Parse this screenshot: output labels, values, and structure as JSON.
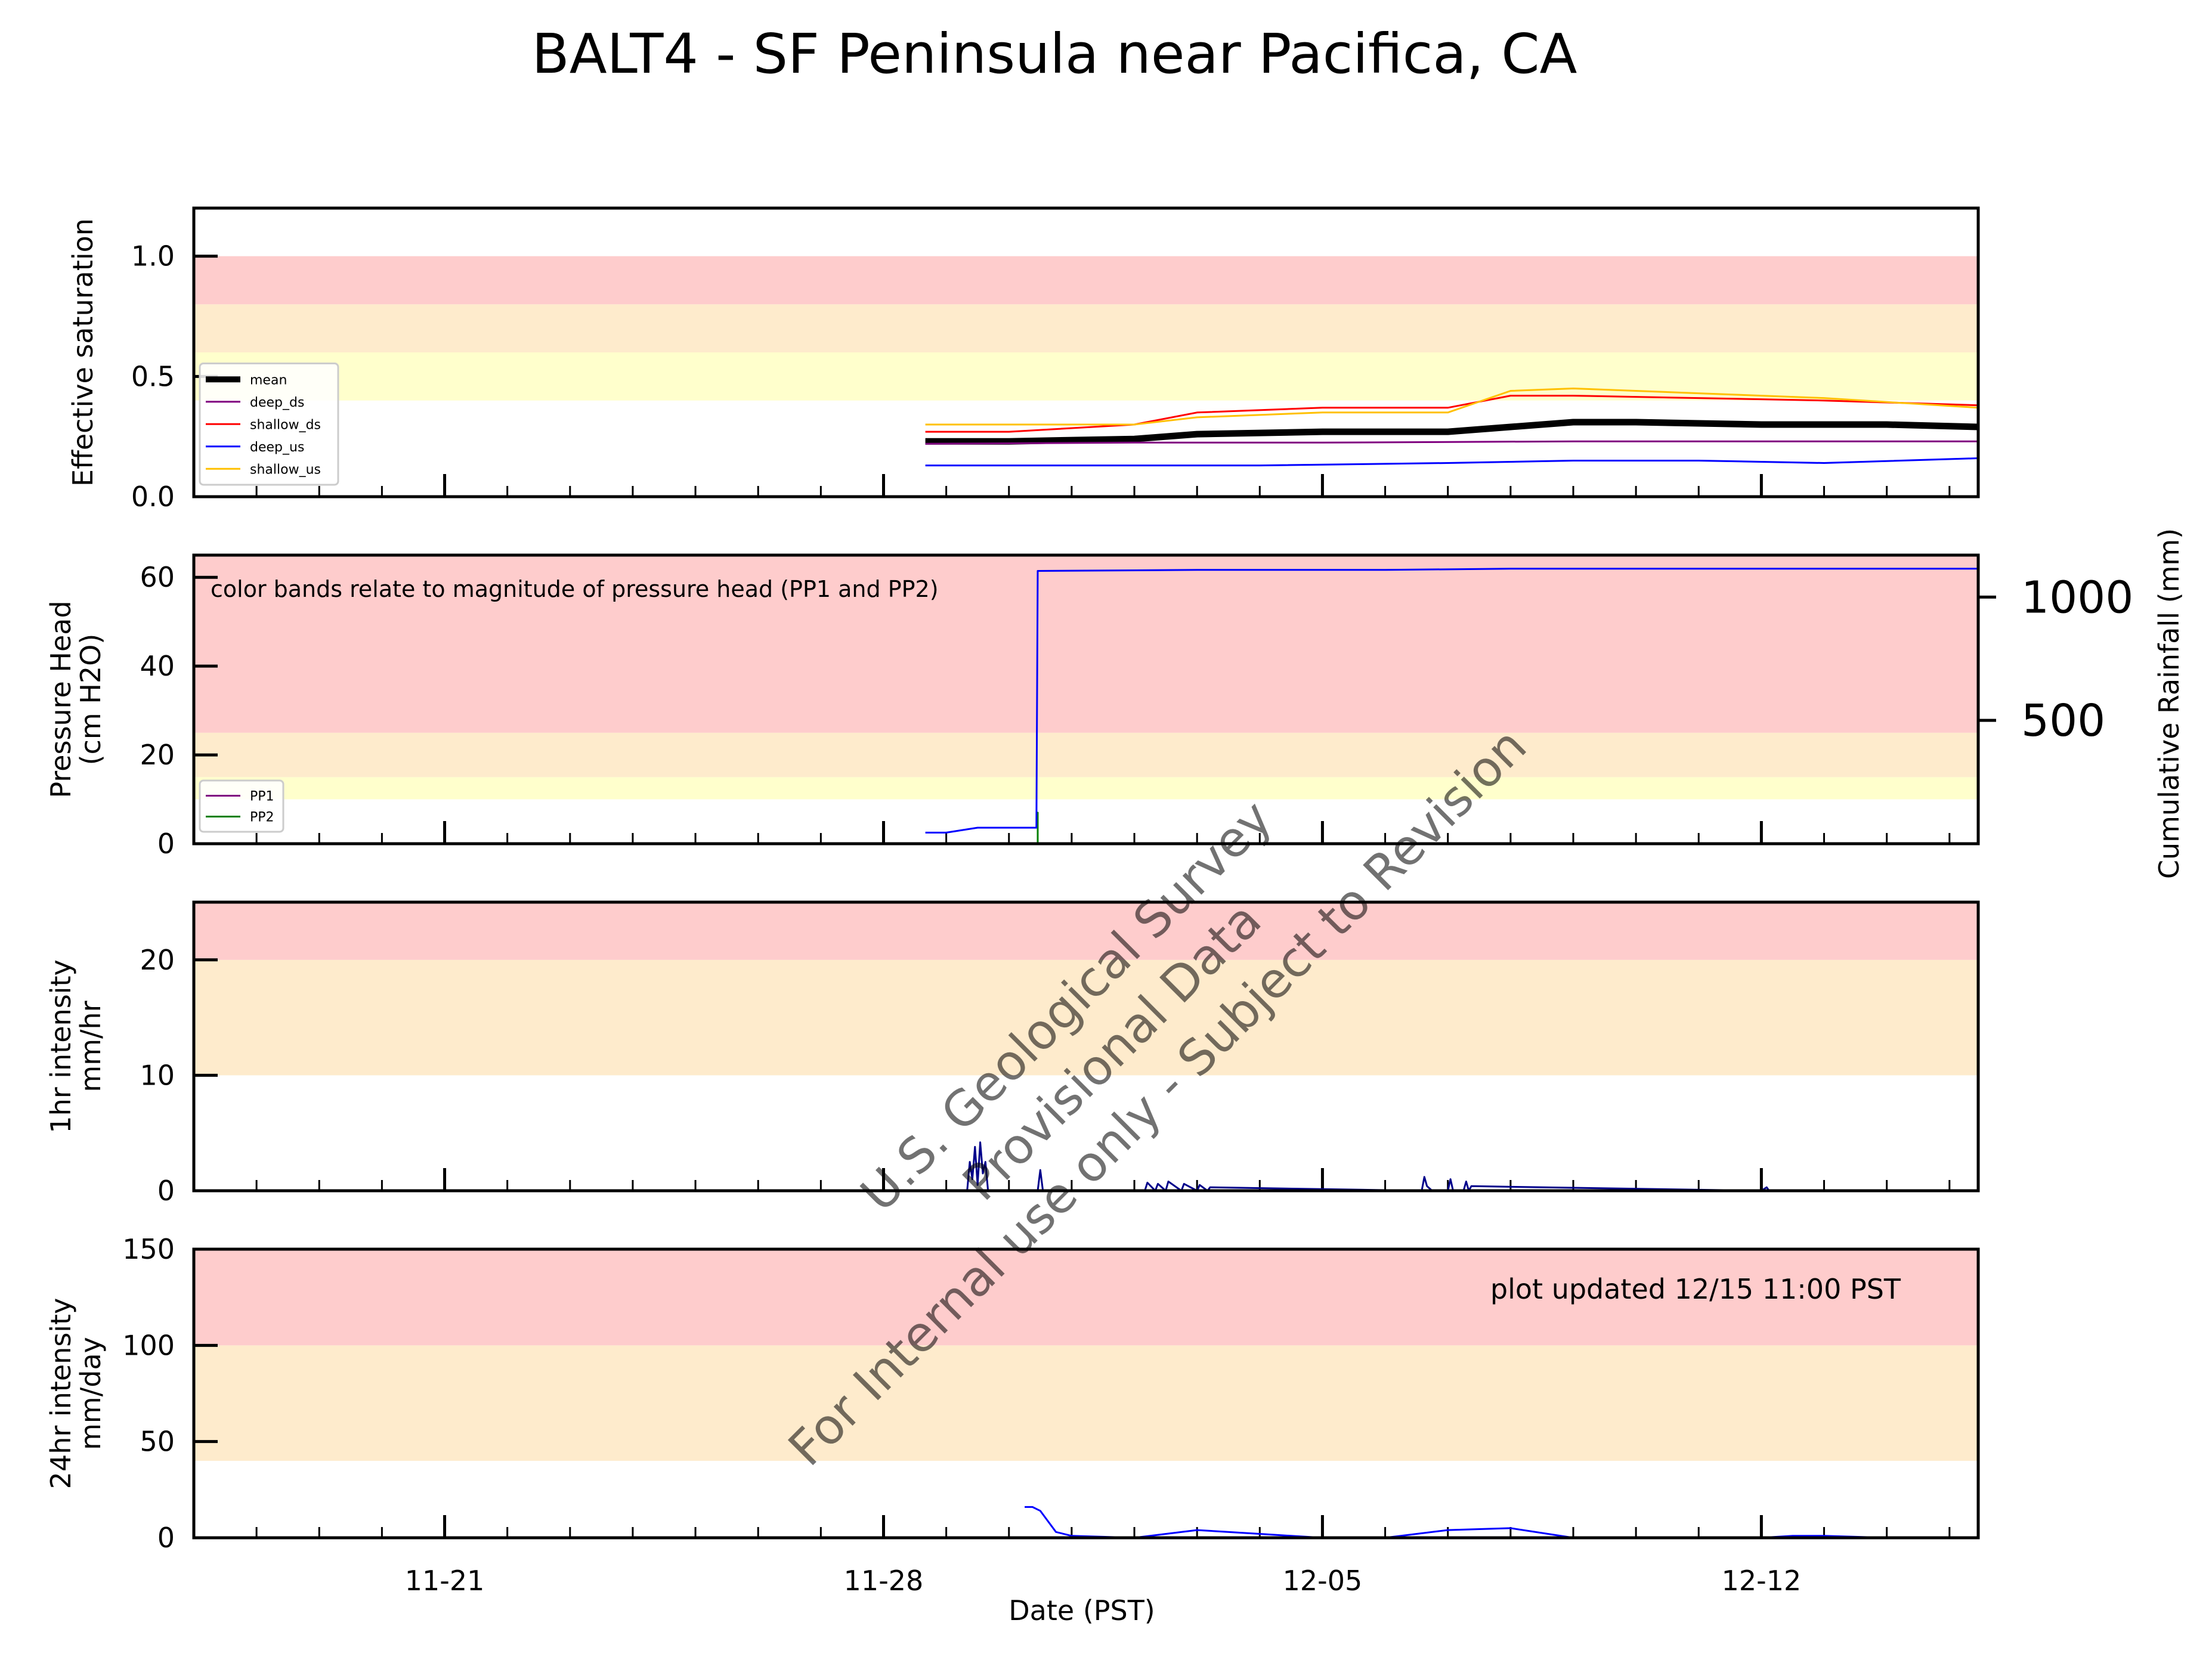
{
  "title": "BALT4 - SF Peninsula near Pacifica, CA",
  "x_axis": {
    "label": "Date (PST)",
    "range": [
      "2020-11-17",
      "2020-12-15T11:00"
    ],
    "ticks": [
      {
        "date": "2020-11-21",
        "label": "11-21"
      },
      {
        "date": "2020-11-28",
        "label": "11-28"
      },
      {
        "date": "2020-12-05",
        "label": "12-05"
      },
      {
        "date": "2020-12-12",
        "label": "12-12"
      }
    ]
  },
  "watermark": {
    "lines": [
      "U.S. Geological Survey",
      "Provisional Data",
      "For Internal use only - Subject to Revision"
    ]
  },
  "colors": {
    "band_red": "#fecccc",
    "band_orange": "#feebcc",
    "band_yellow": "#ffffcc",
    "mean": "#000000",
    "deep_ds": "#800080",
    "shallow_ds": "#ff0000",
    "deep_us": "#0000ff",
    "shallow_us": "#ffc000",
    "pp1": "#800080",
    "pp2": "#008000",
    "rain": "#00008b"
  },
  "chart_data": [
    {
      "type": "line",
      "panel": "saturation",
      "ylabel": "Effective saturation",
      "ylim": [
        0,
        1.2
      ],
      "yticks": [
        "0.0",
        "0.5",
        "1.0"
      ],
      "bands": [
        {
          "from": 0.4,
          "to": 0.6,
          "color": "band_yellow"
        },
        {
          "from": 0.6,
          "to": 0.8,
          "color": "band_orange"
        },
        {
          "from": 0.8,
          "to": 1.0,
          "color": "band_red"
        }
      ],
      "legend": {
        "placement": "lower-left"
      },
      "series": [
        {
          "name": "mean",
          "color": "mean",
          "width": 3,
          "x": [
            "2020-11-28T16:00",
            "2020-11-30",
            "2020-12-02",
            "2020-12-03",
            "2020-12-05",
            "2020-12-07",
            "2020-12-08",
            "2020-12-09",
            "2020-12-10",
            "2020-12-12",
            "2020-12-14",
            "2020-12-15T11:00"
          ],
          "y": [
            0.23,
            0.23,
            0.24,
            0.26,
            0.27,
            0.27,
            0.29,
            0.31,
            0.31,
            0.3,
            0.3,
            0.29
          ]
        },
        {
          "name": "deep_ds",
          "color": "deep_ds",
          "width": 1,
          "x": [
            "2020-11-28T16:00",
            "2020-12-02",
            "2020-12-05",
            "2020-12-09",
            "2020-12-12",
            "2020-12-15T11:00"
          ],
          "y": [
            0.22,
            0.225,
            0.225,
            0.23,
            0.23,
            0.23
          ]
        },
        {
          "name": "shallow_ds",
          "color": "shallow_ds",
          "width": 1,
          "x": [
            "2020-11-28T16:00",
            "2020-11-30",
            "2020-12-02",
            "2020-12-03",
            "2020-12-05",
            "2020-12-07",
            "2020-12-08",
            "2020-12-09",
            "2020-12-11",
            "2020-12-13",
            "2020-12-15T11:00"
          ],
          "y": [
            0.27,
            0.27,
            0.3,
            0.35,
            0.37,
            0.37,
            0.42,
            0.42,
            0.41,
            0.4,
            0.38
          ]
        },
        {
          "name": "deep_us",
          "color": "deep_us",
          "width": 1,
          "x": [
            "2020-11-28T16:00",
            "2020-12-01",
            "2020-12-04",
            "2020-12-07",
            "2020-12-09",
            "2020-12-11",
            "2020-12-13",
            "2020-12-15T11:00"
          ],
          "y": [
            0.13,
            0.13,
            0.13,
            0.14,
            0.15,
            0.15,
            0.14,
            0.16
          ]
        },
        {
          "name": "shallow_us",
          "color": "shallow_us",
          "width": 1,
          "x": [
            "2020-11-28T16:00",
            "2020-11-30",
            "2020-12-02",
            "2020-12-03",
            "2020-12-05",
            "2020-12-07",
            "2020-12-08",
            "2020-12-09",
            "2020-12-11",
            "2020-12-13",
            "2020-12-15T11:00"
          ],
          "y": [
            0.3,
            0.3,
            0.3,
            0.33,
            0.35,
            0.35,
            0.44,
            0.45,
            0.43,
            0.41,
            0.37
          ]
        }
      ]
    },
    {
      "type": "line",
      "panel": "pressure",
      "ylabel_lines": [
        "Pressure Head",
        "(cm H2O)"
      ],
      "ylim": [
        0,
        65
      ],
      "yticks": [
        "0",
        "20",
        "40",
        "60"
      ],
      "y2label": "Cumulative Rainfall (mm)",
      "y2lim": [
        0,
        1170
      ],
      "y2ticks": [
        "500",
        "1000"
      ],
      "annotation": "color bands relate to magnitude of pressure head (PP1 and PP2)",
      "bands": [
        {
          "from": 10,
          "to": 15,
          "color": "band_yellow"
        },
        {
          "from": 15,
          "to": 25,
          "color": "band_orange"
        },
        {
          "from": 25,
          "to": 65,
          "color": "band_red"
        }
      ],
      "legend": {
        "placement": "lower-left"
      },
      "series": [
        {
          "name": "PP1",
          "color": "pp1",
          "x": [],
          "y": []
        },
        {
          "name": "PP2",
          "color": "pp2",
          "x": [
            "2020-11-30T11:00",
            "2020-11-30T11:00",
            "2020-11-30T11:01"
          ],
          "y": [
            0,
            7,
            0
          ]
        },
        {
          "name": "Cumulative Rainfall (mm)",
          "axis": "y2",
          "color": "deep_us",
          "x": [
            "2020-11-28T16:00",
            "2020-11-29",
            "2020-11-29T12:00",
            "2020-11-30T10:30",
            "2020-11-30T11:00",
            "2020-12-03",
            "2020-12-06",
            "2020-12-08",
            "2020-12-15T11:00"
          ],
          "y": [
            45,
            45,
            65,
            65,
            1106,
            1110,
            1110,
            1115,
            1115
          ]
        }
      ]
    },
    {
      "type": "line",
      "panel": "1hr",
      "ylabel_lines": [
        "1hr intensity",
        "mm/hr"
      ],
      "ylim": [
        0,
        25
      ],
      "yticks": [
        "0",
        "10",
        "20"
      ],
      "bands": [
        {
          "from": 10,
          "to": 20,
          "color": "band_orange"
        },
        {
          "from": 20,
          "to": 25,
          "color": "band_red"
        }
      ],
      "series": [
        {
          "name": "1hr intensity",
          "color": "rain",
          "x": [
            "2020-11-29T08:00",
            "2020-11-29T09:00",
            "2020-11-29T10:00",
            "2020-11-29T11:00",
            "2020-11-29T12:00",
            "2020-11-29T13:00",
            "2020-11-29T14:00",
            "2020-11-29T15:00",
            "2020-11-29T16:00",
            "2020-11-30T11:00",
            "2020-11-30T12:00",
            "2020-11-30T13:00",
            "2020-12-02T04:00",
            "2020-12-02T05:00",
            "2020-12-02T08:00",
            "2020-12-02T09:00",
            "2020-12-02T12:00",
            "2020-12-02T13:00",
            "2020-12-02T18:00",
            "2020-12-02T19:00",
            "2020-12-03T00:00",
            "2020-12-03T01:00",
            "2020-12-03T04:00",
            "2020-12-03T05:00",
            "2020-12-06T14:00",
            "2020-12-06T15:00",
            "2020-12-06T16:00",
            "2020-12-06T18:00",
            "2020-12-07T00:00",
            "2020-12-07T01:00",
            "2020-12-07T02:00",
            "2020-12-07T06:00",
            "2020-12-07T07:00",
            "2020-12-07T08:00",
            "2020-12-07T09:00",
            "2020-12-12T00:00",
            "2020-12-12T02:00",
            "2020-12-12T03:00"
          ],
          "y": [
            0,
            2.5,
            1,
            3.8,
            0.5,
            4.2,
            1.5,
            2.5,
            0,
            0,
            1.8,
            0,
            0,
            0.7,
            0,
            0.6,
            0,
            0.8,
            0,
            0.6,
            0,
            0.5,
            0,
            0.3,
            0,
            1.2,
            0.4,
            0,
            0,
            1.0,
            0,
            0,
            0.8,
            0,
            0.4,
            0,
            0.3,
            0
          ]
        }
      ]
    },
    {
      "type": "line",
      "panel": "24hr",
      "ylabel_lines": [
        "24hr intensity",
        "mm/day"
      ],
      "ylim": [
        0,
        150
      ],
      "yticks": [
        "0",
        "50",
        "100",
        "150"
      ],
      "annotation": "plot updated 12/15 11:00  PST",
      "bands": [
        {
          "from": 40,
          "to": 100,
          "color": "band_orange"
        },
        {
          "from": 100,
          "to": 150,
          "color": "band_red"
        }
      ],
      "series": [
        {
          "name": "24hr intensity",
          "color": "deep_us",
          "x": [
            "2020-11-30T06:00",
            "2020-11-30T09:00",
            "2020-11-30T12:00",
            "2020-11-30T18:00",
            "2020-12-01",
            "2020-12-02",
            "2020-12-03",
            "2020-12-04",
            "2020-12-05",
            "2020-12-06",
            "2020-12-07",
            "2020-12-08",
            "2020-12-09",
            "2020-12-12",
            "2020-12-12T12:00",
            "2020-12-13",
            "2020-12-14",
            "2020-12-15T11:00"
          ],
          "y": [
            16,
            16,
            14,
            3,
            1,
            0,
            4,
            2,
            0,
            0,
            4,
            5,
            0,
            0,
            1,
            1,
            0,
            0
          ]
        }
      ]
    }
  ]
}
